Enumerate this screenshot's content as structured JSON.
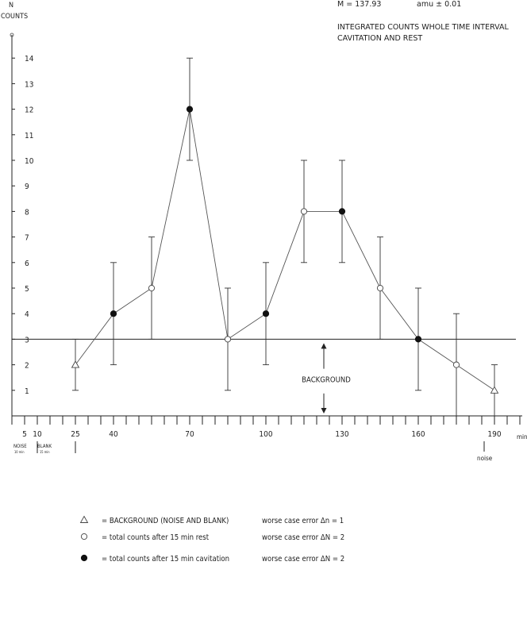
{
  "chart_data": {
    "type": "scatter",
    "header": {
      "mass_label": "M = 137.93",
      "amu_label": "amu  ± 0.01",
      "note_line1": "INTEGRATED COUNTS WHOLE TIME INTERVAL",
      "note_line2": "CAVITATION AND REST"
    },
    "y_axis_label_line1": "N",
    "y_axis_label_line2": "COUNTS",
    "x_unit": "min",
    "ylim": [
      0,
      14.5
    ],
    "xlim": [
      0,
      200
    ],
    "y_ticks": [
      1,
      2,
      3,
      4,
      5,
      6,
      7,
      8,
      9,
      10,
      11,
      12,
      13,
      14
    ],
    "x_tick_labels": [
      {
        "x": 5,
        "label": "5"
      },
      {
        "x": 10,
        "label": "10"
      },
      {
        "x": 25,
        "label": "25"
      },
      {
        "x": 40,
        "label": "40"
      },
      {
        "x": 70,
        "label": "70"
      },
      {
        "x": 100,
        "label": "100"
      },
      {
        "x": 130,
        "label": "130"
      },
      {
        "x": 160,
        "label": "160"
      },
      {
        "x": 190,
        "label": "190"
      }
    ],
    "interval_labels": {
      "noise_top": "NOISE",
      "noise_bottom": "10 min",
      "blank_top": "BLANK",
      "blank_bottom": "15 min",
      "noise_right": "noise"
    },
    "background_level": 3,
    "background_label": "BACKGROUND",
    "series": [
      {
        "name": "background",
        "marker": "triangle-open",
        "points": [
          {
            "x": 25,
            "y": 2,
            "lo": 1,
            "hi": 3
          },
          {
            "x": 190,
            "y": 1,
            "lo": 0,
            "hi": 2
          }
        ]
      },
      {
        "name": "rest",
        "marker": "circle-open",
        "points": [
          {
            "x": 55,
            "y": 5,
            "lo": 3,
            "hi": 7
          },
          {
            "x": 85,
            "y": 3,
            "lo": 1,
            "hi": 5
          },
          {
            "x": 115,
            "y": 8,
            "lo": 6,
            "hi": 10
          },
          {
            "x": 145,
            "y": 5,
            "lo": 3,
            "hi": 7
          },
          {
            "x": 175,
            "y": 2,
            "lo": 0,
            "hi": 4
          }
        ]
      },
      {
        "name": "cavitation",
        "marker": "circle-filled",
        "points": [
          {
            "x": 40,
            "y": 4,
            "lo": 2,
            "hi": 6
          },
          {
            "x": 70,
            "y": 12,
            "lo": 10,
            "hi": 14
          },
          {
            "x": 100,
            "y": 4,
            "lo": 2,
            "hi": 6
          },
          {
            "x": 130,
            "y": 8,
            "lo": 6,
            "hi": 10
          },
          {
            "x": 160,
            "y": 3,
            "lo": 1,
            "hi": 5
          }
        ]
      }
    ],
    "connect_order": [
      25,
      40,
      55,
      70,
      85,
      100,
      115,
      130,
      145,
      160,
      175,
      190
    ],
    "legend": [
      {
        "marker": "triangle-open",
        "text": "= BACKGROUND  (NOISE AND BLANK)",
        "error": "worse case error  Δn = 1"
      },
      {
        "marker": "circle-open",
        "text": "= total counts after 15 min rest",
        "error": "worse case error  ΔN = 2"
      },
      {
        "marker": "circle-filled",
        "text": "= total counts after 15 min cavitation",
        "error": "worse case error  ΔN = 2"
      }
    ]
  }
}
